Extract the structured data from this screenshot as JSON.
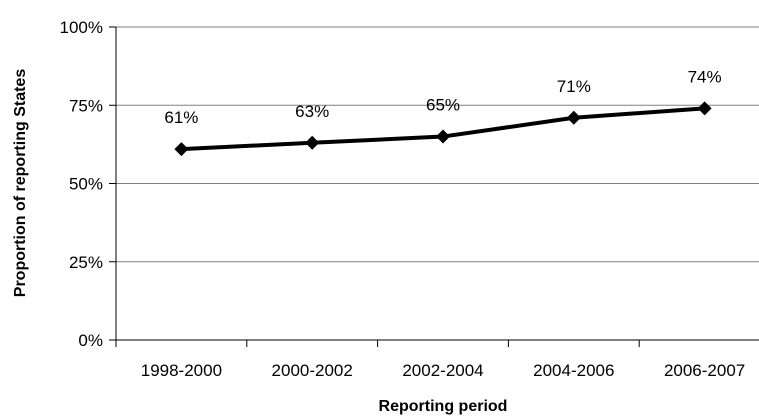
{
  "chart_data": {
    "type": "line",
    "xlabel": "Reporting period",
    "ylabel": "Proportion of reporting States",
    "ylim": [
      0,
      100
    ],
    "y_ticks": [
      {
        "value": 0,
        "label": "0%"
      },
      {
        "value": 25,
        "label": "25%"
      },
      {
        "value": 50,
        "label": "50%"
      },
      {
        "value": 75,
        "label": "75%"
      },
      {
        "value": 100,
        "label": "100%"
      }
    ],
    "categories": [
      "1998-2000",
      "2000-2002",
      "2002-2004",
      "2004-2006",
      "2006-2007"
    ],
    "series": [
      {
        "values": [
          61,
          63,
          65,
          71,
          74
        ],
        "data_labels": [
          "61%",
          "63%",
          "65%",
          "71%",
          "74%"
        ],
        "color": "#000000",
        "marker": "diamond"
      }
    ],
    "grid": "horizontal",
    "legend": "none"
  }
}
